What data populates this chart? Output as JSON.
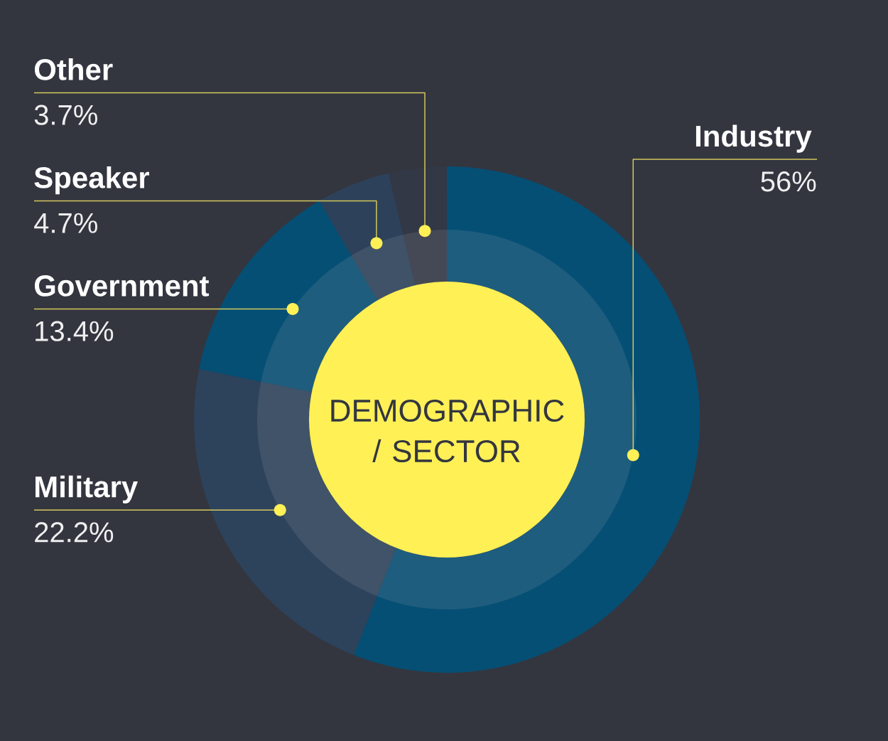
{
  "chart_data": {
    "type": "donut",
    "title": "DEMOGRAPHIC / SECTOR",
    "categories": [
      "Industry",
      "Military",
      "Government",
      "Speaker",
      "Other"
    ],
    "values": [
      56,
      22.2,
      13.4,
      4.7,
      3.7
    ],
    "colors": [
      "#054f75",
      "#2d435c",
      "#054f75",
      "#2d425a",
      "#323845"
    ],
    "value_labels": [
      "56%",
      "22.2%",
      "13.4%",
      "4.7%",
      "3.7%"
    ]
  }
}
